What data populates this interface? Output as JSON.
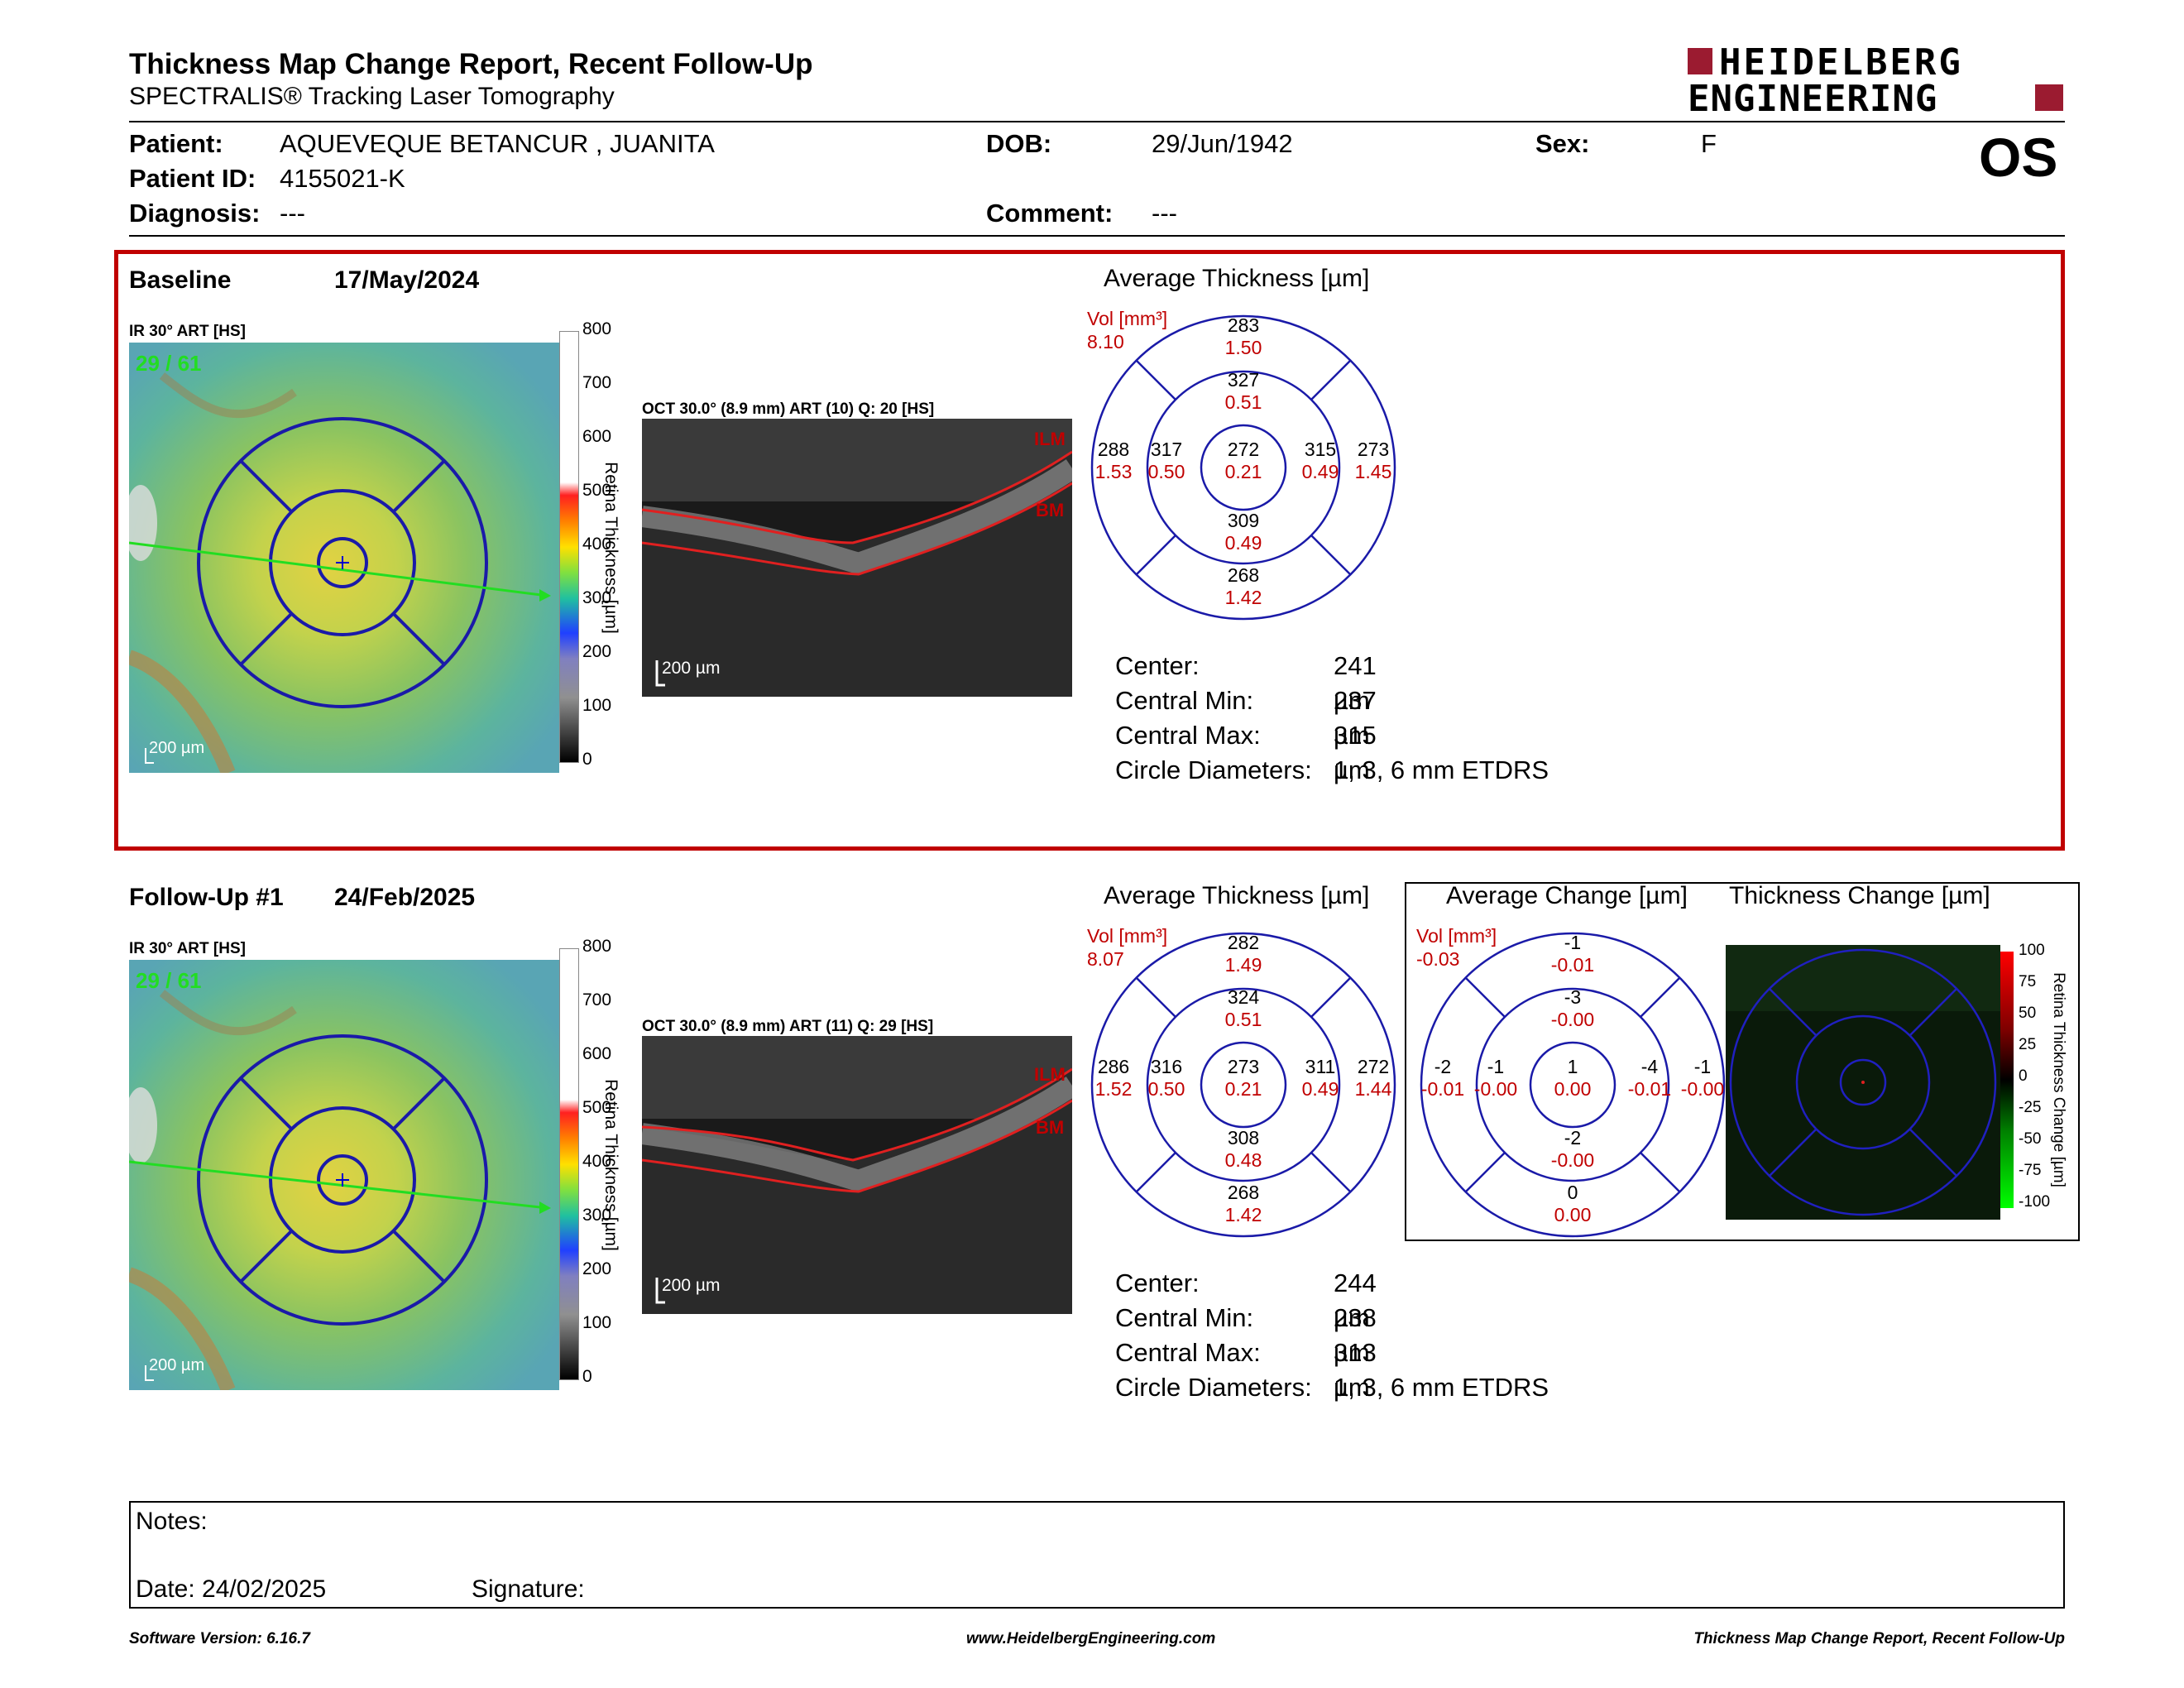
{
  "header": {
    "title": "Thickness Map Change Report, Recent Follow-Up",
    "subtitle": "SPECTRALIS® Tracking Laser Tomography",
    "logo_line1": "HEIDELBERG",
    "logo_line2": "ENGINEERING",
    "eye": "OS"
  },
  "patient": {
    "patient_label": "Patient:",
    "patient": "AQUEVEQUE BETANCUR , JUANITA",
    "dob_label": "DOB:",
    "dob": "29/Jun/1942",
    "sex_label": "Sex:",
    "sex": "F",
    "id_label": "Patient ID:",
    "id": "4155021-K",
    "diag_label": "Diagnosis:",
    "diagnosis": "---",
    "comment_label": "Comment:",
    "comment": "---"
  },
  "baseline": {
    "label": "Baseline",
    "date": "17/May/2024",
    "ir_label": "IR 30° ART [HS]",
    "ir_overlay": "29 / 61",
    "oct_label": "OCT 30.0° (8.9 mm) ART (10) Q: 20 [HS]",
    "scale": "200 µm",
    "avg_title": "Average Thickness [µm]",
    "vol_label": "Vol [mm³]",
    "vol": "8.10",
    "etdrs": {
      "outer_sup": [
        "283",
        "1.50"
      ],
      "inner_sup": [
        "327",
        "0.51"
      ],
      "outer_temp": [
        "288",
        "1.53"
      ],
      "inner_temp": [
        "317",
        "0.50"
      ],
      "center": [
        "272",
        "0.21"
      ],
      "inner_nasal": [
        "315",
        "0.49"
      ],
      "outer_nasal": [
        "273",
        "1.45"
      ],
      "inner_inf": [
        "309",
        "0.49"
      ],
      "outer_inf": [
        "268",
        "1.42"
      ]
    },
    "stats": [
      {
        "k": "Center:",
        "v": "241 µm"
      },
      {
        "k": "Central Min:",
        "v": "237 µm"
      },
      {
        "k": "Central Max:",
        "v": "315 µm"
      },
      {
        "k": "Circle Diameters:",
        "v": "1, 3, 6 mm ETDRS"
      }
    ]
  },
  "followup": {
    "label": "Follow-Up #1",
    "date": "24/Feb/2025",
    "ir_label": "IR 30° ART [HS]",
    "ir_overlay": "29 / 61",
    "oct_label": "OCT 30.0° (8.9 mm) ART (11) Q: 29 [HS]",
    "scale": "200 µm",
    "avg_title": "Average Thickness [µm]",
    "vol_label": "Vol [mm³]",
    "vol": "8.07",
    "etdrs": {
      "outer_sup": [
        "282",
        "1.49"
      ],
      "inner_sup": [
        "324",
        "0.51"
      ],
      "outer_temp": [
        "286",
        "1.52"
      ],
      "inner_temp": [
        "316",
        "0.50"
      ],
      "center": [
        "273",
        "0.21"
      ],
      "inner_nasal": [
        "311",
        "0.49"
      ],
      "outer_nasal": [
        "272",
        "1.44"
      ],
      "inner_inf": [
        "308",
        "0.48"
      ],
      "outer_inf": [
        "268",
        "1.42"
      ]
    },
    "change_title": "Average Change [µm]",
    "change_vol_label": "Vol [mm³]",
    "change_vol": "-0.03",
    "change": {
      "outer_sup": [
        "-1",
        "-0.01"
      ],
      "inner_sup": [
        "-3",
        "-0.00"
      ],
      "outer_temp": [
        "-2",
        "-0.01"
      ],
      "inner_temp": [
        "-1",
        "-0.00"
      ],
      "center": [
        "1",
        "0.00"
      ],
      "inner_nasal": [
        "-4",
        "-0.01"
      ],
      "outer_nasal": [
        "-1",
        "-0.00"
      ],
      "inner_inf": [
        "-2",
        "-0.00"
      ],
      "outer_inf": [
        "0",
        "0.00"
      ]
    },
    "thickchange_title": "Thickness Change [µm]",
    "stats": [
      {
        "k": "Center:",
        "v": "244 µm"
      },
      {
        "k": "Central Min:",
        "v": "238 µm"
      },
      {
        "k": "Central Max:",
        "v": "313 µm"
      },
      {
        "k": "Circle Diameters:",
        "v": "1, 3, 6 mm ETDRS"
      }
    ]
  },
  "colorbar": {
    "title": "Retina Thickness [µm]",
    "ticks": [
      "800",
      "700",
      "600",
      "500",
      "400",
      "300",
      "200",
      "100",
      "0"
    ]
  },
  "changebar": {
    "title": "Retina Thickness Change [µm]",
    "ticks": [
      "100",
      "75",
      "50",
      "25",
      "0",
      "-25",
      "-50",
      "-75",
      "-100"
    ]
  },
  "oct_labels": {
    "ilm": "ILM",
    "bm": "BM"
  },
  "notes": {
    "label": "Notes:",
    "date": "Date: 24/02/2025",
    "signature": "Signature:"
  },
  "footer": {
    "left": "Software Version: 6.16.7",
    "center": "www.HeidelbergEngineering.com",
    "right": "Thickness Map Change Report, Recent Follow-Up"
  },
  "colors": {
    "accent_red": "#c00000",
    "logo_red": "#9b1b30",
    "grid_blue": "#1a1aa8"
  }
}
